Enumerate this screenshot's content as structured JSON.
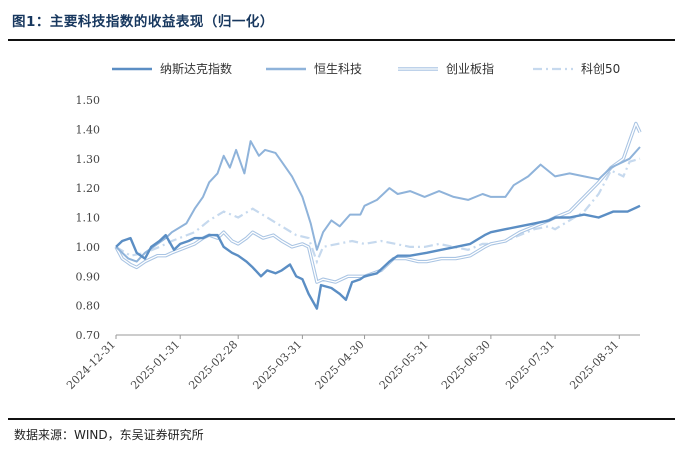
{
  "title": "图1：主要科技指数的收益表现（归一化）",
  "source": "数据来源：WIND，东吴证券研究所",
  "chart_data": {
    "type": "line",
    "ylim": [
      0.7,
      1.5
    ],
    "yticks": [
      "1.50",
      "1.40",
      "1.30",
      "1.20",
      "1.10",
      "1.00",
      "0.90",
      "0.80",
      "0.70"
    ],
    "xticks": [
      "2024-12-31",
      "2025-01-31",
      "2025-02-28",
      "2025-03-31",
      "2025-04-30",
      "2025-05-31",
      "2025-06-30",
      "2025-07-31",
      "2025-08-31"
    ],
    "x_start": "2024-12-31",
    "x_end": "2025-09-10",
    "legend_position": "top",
    "grid": false,
    "series": [
      {
        "name": "纳斯达克指数",
        "color": "#5b8ec4",
        "style": "solid",
        "points": [
          [
            "2024-12-31",
            1.0
          ],
          [
            "2025-01-03",
            1.02
          ],
          [
            "2025-01-07",
            1.03
          ],
          [
            "2025-01-10",
            0.98
          ],
          [
            "2025-01-14",
            0.96
          ],
          [
            "2025-01-17",
            1.0
          ],
          [
            "2025-01-21",
            1.02
          ],
          [
            "2025-01-24",
            1.04
          ],
          [
            "2025-01-28",
            0.99
          ],
          [
            "2025-01-31",
            1.01
          ],
          [
            "2025-02-04",
            1.02
          ],
          [
            "2025-02-07",
            1.03
          ],
          [
            "2025-02-11",
            1.03
          ],
          [
            "2025-02-14",
            1.04
          ],
          [
            "2025-02-18",
            1.04
          ],
          [
            "2025-02-21",
            1.0
          ],
          [
            "2025-02-25",
            0.98
          ],
          [
            "2025-02-28",
            0.97
          ],
          [
            "2025-03-04",
            0.95
          ],
          [
            "2025-03-07",
            0.93
          ],
          [
            "2025-03-11",
            0.9
          ],
          [
            "2025-03-14",
            0.92
          ],
          [
            "2025-03-18",
            0.91
          ],
          [
            "2025-03-21",
            0.92
          ],
          [
            "2025-03-25",
            0.94
          ],
          [
            "2025-03-28",
            0.9
          ],
          [
            "2025-03-31",
            0.89
          ],
          [
            "2025-04-03",
            0.84
          ],
          [
            "2025-04-07",
            0.79
          ],
          [
            "2025-04-09",
            0.87
          ],
          [
            "2025-04-14",
            0.86
          ],
          [
            "2025-04-18",
            0.84
          ],
          [
            "2025-04-21",
            0.82
          ],
          [
            "2025-04-24",
            0.88
          ],
          [
            "2025-04-28",
            0.89
          ],
          [
            "2025-04-30",
            0.9
          ],
          [
            "2025-05-06",
            0.91
          ],
          [
            "2025-05-12",
            0.95
          ],
          [
            "2025-05-16",
            0.97
          ],
          [
            "2025-05-22",
            0.97
          ],
          [
            "2025-05-30",
            0.98
          ],
          [
            "2025-06-06",
            0.99
          ],
          [
            "2025-06-13",
            1.0
          ],
          [
            "2025-06-20",
            1.01
          ],
          [
            "2025-06-27",
            1.04
          ],
          [
            "2025-06-30",
            1.05
          ],
          [
            "2025-07-07",
            1.06
          ],
          [
            "2025-07-14",
            1.07
          ],
          [
            "2025-07-21",
            1.08
          ],
          [
            "2025-07-28",
            1.09
          ],
          [
            "2025-07-31",
            1.1
          ],
          [
            "2025-08-07",
            1.1
          ],
          [
            "2025-08-14",
            1.11
          ],
          [
            "2025-08-21",
            1.1
          ],
          [
            "2025-08-28",
            1.12
          ],
          [
            "2025-09-04",
            1.12
          ],
          [
            "2025-09-10",
            1.14
          ]
        ]
      },
      {
        "name": "恒生科技",
        "color": "#8fb3da",
        "style": "solid",
        "points": [
          [
            "2024-12-31",
            1.0
          ],
          [
            "2025-01-06",
            0.96
          ],
          [
            "2025-01-10",
            0.95
          ],
          [
            "2025-01-14",
            0.98
          ],
          [
            "2025-01-20",
            1.01
          ],
          [
            "2025-01-24",
            1.03
          ],
          [
            "2025-01-27",
            1.05
          ],
          [
            "2025-02-03",
            1.08
          ],
          [
            "2025-02-07",
            1.13
          ],
          [
            "2025-02-11",
            1.17
          ],
          [
            "2025-02-14",
            1.22
          ],
          [
            "2025-02-18",
            1.25
          ],
          [
            "2025-02-21",
            1.31
          ],
          [
            "2025-02-24",
            1.27
          ],
          [
            "2025-02-27",
            1.33
          ],
          [
            "2025-03-03",
            1.25
          ],
          [
            "2025-03-06",
            1.36
          ],
          [
            "2025-03-10",
            1.31
          ],
          [
            "2025-03-13",
            1.33
          ],
          [
            "2025-03-18",
            1.32
          ],
          [
            "2025-03-21",
            1.29
          ],
          [
            "2025-03-26",
            1.24
          ],
          [
            "2025-03-31",
            1.17
          ],
          [
            "2025-04-04",
            1.08
          ],
          [
            "2025-04-07",
            0.99
          ],
          [
            "2025-04-10",
            1.05
          ],
          [
            "2025-04-14",
            1.09
          ],
          [
            "2025-04-18",
            1.07
          ],
          [
            "2025-04-23",
            1.11
          ],
          [
            "2025-04-28",
            1.11
          ],
          [
            "2025-04-30",
            1.14
          ],
          [
            "2025-05-06",
            1.16
          ],
          [
            "2025-05-12",
            1.2
          ],
          [
            "2025-05-16",
            1.18
          ],
          [
            "2025-05-22",
            1.19
          ],
          [
            "2025-05-29",
            1.17
          ],
          [
            "2025-06-05",
            1.19
          ],
          [
            "2025-06-12",
            1.17
          ],
          [
            "2025-06-19",
            1.16
          ],
          [
            "2025-06-26",
            1.18
          ],
          [
            "2025-06-30",
            1.17
          ],
          [
            "2025-07-07",
            1.17
          ],
          [
            "2025-07-11",
            1.21
          ],
          [
            "2025-07-18",
            1.24
          ],
          [
            "2025-07-24",
            1.28
          ],
          [
            "2025-07-31",
            1.24
          ],
          [
            "2025-08-07",
            1.25
          ],
          [
            "2025-08-14",
            1.24
          ],
          [
            "2025-08-21",
            1.23
          ],
          [
            "2025-08-27",
            1.27
          ],
          [
            "2025-09-02",
            1.29
          ],
          [
            "2025-09-05",
            1.3
          ],
          [
            "2025-09-10",
            1.34
          ]
        ]
      },
      {
        "name": "创业板指",
        "color": "#a9c4e3",
        "style": "double",
        "points": [
          [
            "2024-12-31",
            1.0
          ],
          [
            "2025-01-03",
            0.96
          ],
          [
            "2025-01-07",
            0.94
          ],
          [
            "2025-01-10",
            0.93
          ],
          [
            "2025-01-14",
            0.95
          ],
          [
            "2025-01-20",
            0.97
          ],
          [
            "2025-01-24",
            0.97
          ],
          [
            "2025-01-27",
            0.98
          ],
          [
            "2025-02-07",
            1.01
          ],
          [
            "2025-02-11",
            1.03
          ],
          [
            "2025-02-14",
            1.04
          ],
          [
            "2025-02-18",
            1.03
          ],
          [
            "2025-02-21",
            1.05
          ],
          [
            "2025-02-25",
            1.02
          ],
          [
            "2025-02-28",
            1.01
          ],
          [
            "2025-03-04",
            1.03
          ],
          [
            "2025-03-07",
            1.05
          ],
          [
            "2025-03-12",
            1.03
          ],
          [
            "2025-03-17",
            1.04
          ],
          [
            "2025-03-21",
            1.02
          ],
          [
            "2025-03-26",
            1.0
          ],
          [
            "2025-03-31",
            1.01
          ],
          [
            "2025-04-03",
            1.0
          ],
          [
            "2025-04-07",
            0.88
          ],
          [
            "2025-04-10",
            0.89
          ],
          [
            "2025-04-16",
            0.88
          ],
          [
            "2025-04-22",
            0.9
          ],
          [
            "2025-04-28",
            0.9
          ],
          [
            "2025-04-30",
            0.9
          ],
          [
            "2025-05-08",
            0.92
          ],
          [
            "2025-05-14",
            0.96
          ],
          [
            "2025-05-20",
            0.96
          ],
          [
            "2025-05-26",
            0.95
          ],
          [
            "2025-05-30",
            0.95
          ],
          [
            "2025-06-06",
            0.96
          ],
          [
            "2025-06-13",
            0.96
          ],
          [
            "2025-06-20",
            0.97
          ],
          [
            "2025-06-27",
            1.0
          ],
          [
            "2025-06-30",
            1.01
          ],
          [
            "2025-07-07",
            1.02
          ],
          [
            "2025-07-14",
            1.05
          ],
          [
            "2025-07-21",
            1.07
          ],
          [
            "2025-07-28",
            1.09
          ],
          [
            "2025-07-31",
            1.1
          ],
          [
            "2025-08-07",
            1.12
          ],
          [
            "2025-08-14",
            1.17
          ],
          [
            "2025-08-21",
            1.22
          ],
          [
            "2025-08-27",
            1.27
          ],
          [
            "2025-09-02",
            1.3
          ],
          [
            "2025-09-05",
            1.36
          ],
          [
            "2025-09-08",
            1.42
          ],
          [
            "2025-09-10",
            1.39
          ]
        ]
      },
      {
        "name": "科创50",
        "color": "#c6d9ee",
        "style": "dashdot",
        "points": [
          [
            "2024-12-31",
            1.0
          ],
          [
            "2025-01-07",
            0.97
          ],
          [
            "2025-01-14",
            0.98
          ],
          [
            "2025-01-21",
            1.0
          ],
          [
            "2025-01-27",
            1.02
          ],
          [
            "2025-02-07",
            1.05
          ],
          [
            "2025-02-14",
            1.09
          ],
          [
            "2025-02-21",
            1.12
          ],
          [
            "2025-02-28",
            1.1
          ],
          [
            "2025-03-07",
            1.13
          ],
          [
            "2025-03-14",
            1.1
          ],
          [
            "2025-03-21",
            1.07
          ],
          [
            "2025-03-28",
            1.04
          ],
          [
            "2025-04-03",
            1.03
          ],
          [
            "2025-04-07",
            0.95
          ],
          [
            "2025-04-10",
            1.0
          ],
          [
            "2025-04-17",
            1.01
          ],
          [
            "2025-04-24",
            1.02
          ],
          [
            "2025-04-30",
            1.01
          ],
          [
            "2025-05-08",
            1.02
          ],
          [
            "2025-05-15",
            1.01
          ],
          [
            "2025-05-22",
            1.0
          ],
          [
            "2025-05-29",
            1.0
          ],
          [
            "2025-06-05",
            1.01
          ],
          [
            "2025-06-12",
            1.0
          ],
          [
            "2025-06-19",
            0.99
          ],
          [
            "2025-06-26",
            1.01
          ],
          [
            "2025-06-30",
            1.01
          ],
          [
            "2025-07-07",
            1.02
          ],
          [
            "2025-07-14",
            1.04
          ],
          [
            "2025-07-21",
            1.06
          ],
          [
            "2025-07-28",
            1.07
          ],
          [
            "2025-07-31",
            1.06
          ],
          [
            "2025-08-07",
            1.09
          ],
          [
            "2025-08-14",
            1.12
          ],
          [
            "2025-08-21",
            1.18
          ],
          [
            "2025-08-27",
            1.26
          ],
          [
            "2025-09-02",
            1.24
          ],
          [
            "2025-09-05",
            1.29
          ],
          [
            "2025-09-10",
            1.3
          ]
        ]
      }
    ]
  }
}
